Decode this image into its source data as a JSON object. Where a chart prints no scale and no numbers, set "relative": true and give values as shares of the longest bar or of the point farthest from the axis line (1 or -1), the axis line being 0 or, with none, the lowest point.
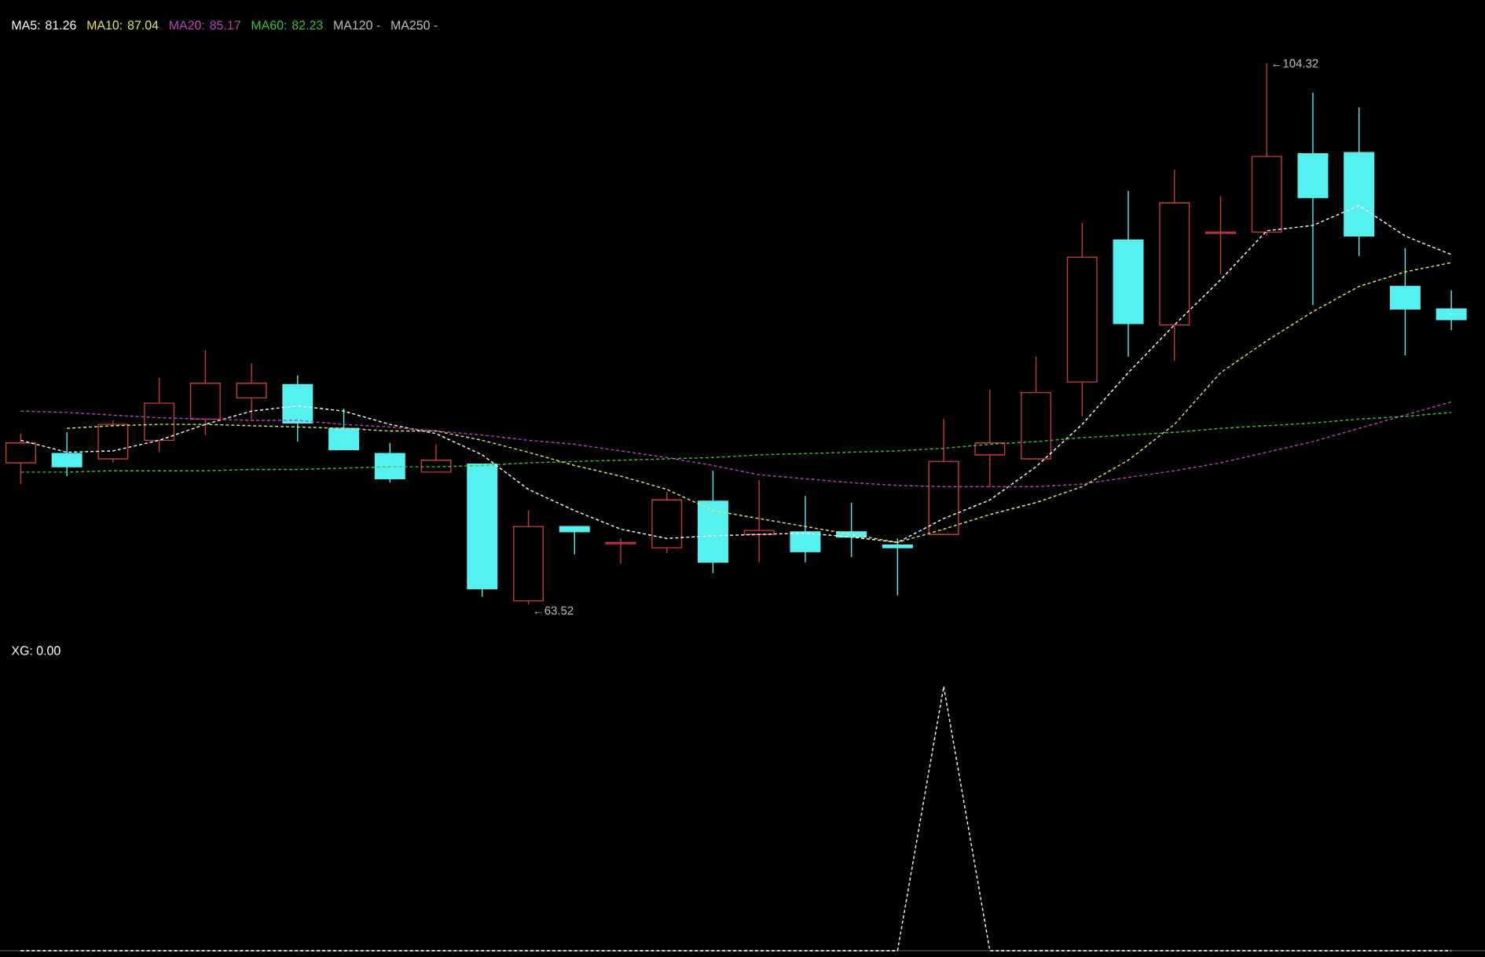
{
  "chart_data": [
    {
      "type": "candlestick",
      "legend": "top left",
      "line_style": "dashed",
      "categories": [
        null,
        null,
        null,
        null,
        null,
        null,
        null,
        null,
        null,
        null,
        null,
        null,
        null,
        null,
        null,
        null,
        null,
        null,
        null,
        null,
        null,
        null,
        null,
        null,
        null,
        null,
        null,
        null,
        null,
        null,
        null,
        null
      ],
      "ohlc": [
        [
          74.2,
          76.4,
          72.6,
          75.7
        ],
        [
          74.9,
          76.5,
          73.2,
          73.9
        ],
        [
          74.5,
          77.4,
          74.2,
          77.1
        ],
        [
          75.9,
          80.6,
          75.0,
          78.7
        ],
        [
          77.5,
          82.7,
          76.3,
          80.2
        ],
        [
          79.1,
          81.7,
          77.5,
          80.2
        ],
        [
          80.1,
          80.8,
          75.8,
          77.2
        ],
        [
          76.8,
          78.3,
          75.2,
          75.2
        ],
        [
          74.9,
          75.7,
          72.7,
          73.0
        ],
        [
          73.5,
          75.6,
          73.5,
          74.4
        ],
        [
          74.1,
          74.1,
          64.1,
          64.7
        ],
        [
          63.8,
          70.6,
          63.52,
          69.4
        ],
        [
          69.4,
          69.4,
          67.3,
          69.0
        ],
        [
          68.1,
          68.5,
          66.6,
          68.2
        ],
        [
          67.8,
          72.0,
          67.4,
          71.4
        ],
        [
          71.3,
          73.6,
          65.9,
          66.7
        ],
        [
          68.8,
          72.9,
          66.7,
          69.1
        ],
        [
          69.0,
          71.7,
          66.7,
          67.5
        ],
        [
          69.0,
          71.2,
          67.1,
          68.6
        ],
        [
          68.0,
          68.5,
          64.2,
          67.8
        ],
        [
          68.8,
          77.5,
          68.8,
          74.3
        ],
        [
          74.8,
          79.7,
          72.4,
          75.7
        ],
        [
          74.5,
          82.2,
          74.5,
          79.5
        ],
        [
          80.3,
          92.3,
          77.7,
          89.7
        ],
        [
          91.0,
          94.7,
          82.2,
          84.7
        ],
        [
          84.6,
          96.3,
          81.9,
          93.8
        ],
        [
          91.5,
          94.3,
          88.4,
          91.6
        ],
        [
          91.6,
          104.32,
          91.3,
          97.3
        ],
        [
          97.5,
          102.1,
          86.1,
          94.2
        ],
        [
          97.6,
          101.0,
          89.8,
          91.3
        ],
        [
          87.5,
          90.4,
          82.3,
          85.8
        ],
        [
          85.8,
          87.2,
          84.2,
          85.0
        ]
      ],
      "colors": [
        "#c83c3c",
        "#55f0f0",
        "#c83c3c",
        "#c83c3c",
        "#c83c3c",
        "#c83c3c",
        "#55f0f0",
        "#55f0f0",
        "#55f0f0",
        "#c83c3c",
        "#55f0f0",
        "#c83c3c",
        "#55f0f0",
        "#c83c3c",
        "#c83c3c",
        "#55f0f0",
        "#c83c3c",
        "#55f0f0",
        "#55f0f0",
        "#55f0f0",
        "#c83c3c",
        "#c83c3c",
        "#c83c3c",
        "#c83c3c",
        "#55f0f0",
        "#c83c3c",
        "#c83c3c",
        "#c83c3c",
        "#55f0f0",
        "#55f0f0",
        "#55f0f0",
        "#55f0f0"
      ],
      "series": [
        {
          "name": "MA5: 81.26",
          "type": "line",
          "color": "#ffffff",
          "values": [
            75.9,
            75.0,
            75.1,
            75.9,
            77.1,
            78.1,
            78.5,
            78.1,
            77.1,
            76.4,
            74.8,
            72.2,
            70.6,
            69.2,
            68.5,
            68.7,
            68.8,
            68.9,
            68.6,
            68.2,
            70.0,
            71.4,
            73.9,
            77.1,
            81.0,
            84.6,
            88.0,
            91.7,
            92.1,
            93.6,
            91.3,
            89.9
          ]
        },
        {
          "name": "MA10: 87.04",
          "type": "line",
          "color": "#e8e860",
          "values": [
            null,
            76.8,
            77.0,
            77.1,
            77.1,
            77.0,
            76.9,
            76.8,
            76.6,
            76.6,
            75.9,
            75.0,
            74.0,
            73.2,
            72.2,
            70.6,
            70.0,
            69.4,
            68.8,
            68.2,
            69.2,
            70.3,
            71.2,
            72.4,
            74.4,
            77.1,
            81.0,
            83.4,
            85.6,
            87.5,
            88.6,
            89.3
          ]
        },
        {
          "name": "MA20: 85.17",
          "type": "line",
          "color": "#c040c0",
          "values": [
            78.1,
            78.0,
            77.8,
            77.6,
            77.5,
            77.4,
            77.4,
            77.1,
            76.9,
            76.6,
            76.3,
            75.9,
            75.6,
            75.1,
            74.6,
            74.0,
            73.3,
            73.0,
            72.7,
            72.5,
            72.4,
            72.4,
            72.4,
            72.6,
            73.1,
            73.6,
            74.2,
            75.0,
            75.8,
            76.8,
            77.8,
            78.8
          ]
        },
        {
          "name": "MA60: 82.23",
          "type": "line",
          "color": "#40c040",
          "values": [
            73.5,
            73.5,
            73.6,
            73.6,
            73.6,
            73.7,
            73.7,
            73.8,
            73.9,
            73.9,
            74.0,
            74.2,
            74.3,
            74.4,
            74.5,
            74.6,
            74.8,
            74.9,
            75.0,
            75.1,
            75.3,
            75.6,
            75.8,
            76.1,
            76.3,
            76.5,
            76.8,
            77.0,
            77.2,
            77.5,
            77.7,
            78.0
          ]
        }
      ],
      "annotations": [
        "←104.32",
        "←63.52",
        "MA120 -",
        "MA250 -"
      ]
    },
    {
      "type": "line",
      "relative": true,
      "legend": "top left",
      "line_style": "dashed",
      "categories": [
        null,
        null,
        null,
        null,
        null,
        null,
        null,
        null,
        null,
        null,
        null,
        null,
        null,
        null,
        null,
        null,
        null,
        null,
        null,
        null,
        null,
        null,
        null,
        null,
        null,
        null,
        null,
        null,
        null,
        null,
        null,
        null
      ],
      "series": [
        {
          "name": "XG: 0.00",
          "color": "#ffffff",
          "values": [
            0,
            0,
            0,
            0,
            0,
            0,
            0,
            0,
            0,
            0,
            0,
            0,
            0,
            0,
            0,
            0,
            0,
            0,
            0,
            0,
            1,
            0,
            0,
            0,
            0,
            0,
            0,
            0,
            0,
            0,
            0,
            0
          ]
        }
      ]
    }
  ]
}
